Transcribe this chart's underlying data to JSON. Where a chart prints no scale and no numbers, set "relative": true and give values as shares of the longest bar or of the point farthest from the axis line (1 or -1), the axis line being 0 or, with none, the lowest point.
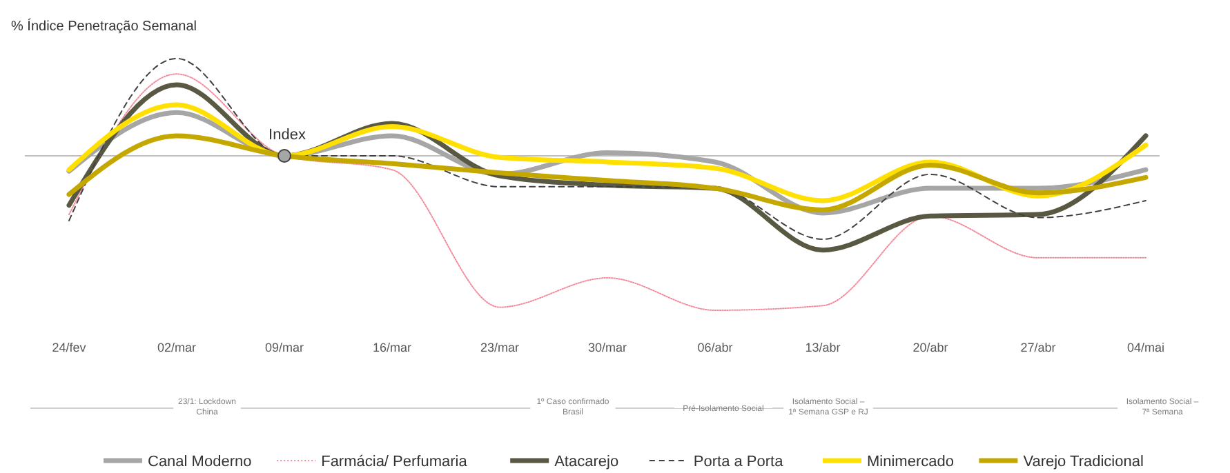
{
  "chart_data": {
    "type": "line",
    "relative": true,
    "title": "% Índice Penetração Semanal",
    "categories": [
      "24/fev",
      "02/mar",
      "09/mar",
      "16/mar",
      "23/mar",
      "30/mar",
      "06/abr",
      "13/abr",
      "20/abr",
      "27/abr",
      "04/mai"
    ],
    "series": [
      {
        "name": "Canal Moderno",
        "color": "#a6a6a6",
        "line_style": "solid",
        "values": [
          -0.1,
          0.28,
          0,
          0.13,
          -0.12,
          0.02,
          -0.04,
          -0.37,
          -0.21,
          -0.21,
          -0.09
        ]
      },
      {
        "name": "Farmácia/ Perfumaria",
        "color": "#f28b9b",
        "line_style": "dotted",
        "values": [
          -0.38,
          0.53,
          0,
          -0.09,
          -0.98,
          -0.79,
          -1,
          -0.97,
          -0.39,
          -0.66,
          -0.66
        ]
      },
      {
        "name": "Atacarejo",
        "color": "#595943",
        "line_style": "solid",
        "values": [
          -0.32,
          0.46,
          0,
          0.21,
          -0.13,
          -0.19,
          -0.21,
          -0.61,
          -0.39,
          -0.38,
          0.13
        ]
      },
      {
        "name": "Porta a Porta",
        "color": "#404040",
        "line_style": "dashed",
        "values": [
          -0.42,
          0.63,
          0,
          0,
          -0.2,
          -0.2,
          -0.21,
          -0.54,
          -0.12,
          -0.4,
          -0.29
        ]
      },
      {
        "name": "Minimercado",
        "color": "#ffe000",
        "line_style": "solid",
        "values": [
          -0.09,
          0.33,
          0,
          0.19,
          -0.01,
          -0.04,
          -0.08,
          -0.29,
          -0.04,
          -0.26,
          0.07
        ]
      },
      {
        "name": "Varejo Tradicional",
        "color": "#c4a800",
        "line_style": "solid",
        "values": [
          -0.25,
          0.13,
          0,
          -0.05,
          -0.11,
          -0.16,
          -0.21,
          -0.35,
          -0.06,
          -0.24,
          -0.14
        ]
      }
    ],
    "ref_lines": [
      {
        "axis": "y",
        "value": 0,
        "color": "#bfbfbf"
      }
    ],
    "annotations": [
      {
        "text": "Index",
        "x": "09/mar",
        "y": 0
      },
      "23/1: Lockdown\nChina",
      "1º Caso confirmado\nBrasil",
      "Pré-Isolamento Social",
      "Isolamento Social –\n1ª Semana GSP e RJ",
      "Isolamento Social –\n7ª Semana"
    ],
    "legend": "bottom"
  }
}
